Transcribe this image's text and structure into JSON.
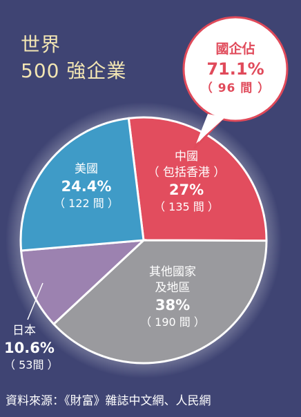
{
  "title": {
    "line1": "世界",
    "line2": "500 強企業"
  },
  "callout": {
    "line1": "國企佔",
    "line2": "71.1%",
    "line3": "（ 96 間 ）"
  },
  "chart_data": {
    "type": "pie",
    "slices": [
      {
        "key": "china",
        "name_lines": [
          "中國",
          "（ 包括香港 ）"
        ],
        "percent_label": "27%",
        "count_label": "（ 135 間 ）",
        "value": 27,
        "color": "#e24d5e"
      },
      {
        "key": "other",
        "name_lines": [
          "其他國家",
          "及地區"
        ],
        "percent_label": "38%",
        "count_label": "（ 190 間 ）",
        "value": 38,
        "color": "#9a9a9e"
      },
      {
        "key": "japan",
        "name_lines": [
          "日本"
        ],
        "percent_label": "10.6%",
        "count_label": "（ 53間 ）",
        "value": 10.6,
        "color": "#9c82b0"
      },
      {
        "key": "usa",
        "name_lines": [
          "美國"
        ],
        "percent_label": "24.4%",
        "count_label": "（ 122 間 ）",
        "value": 24.4,
        "color": "#3f9bc7"
      }
    ]
  },
  "source": "資料來源：《財富》雜誌中文網、人民網"
}
